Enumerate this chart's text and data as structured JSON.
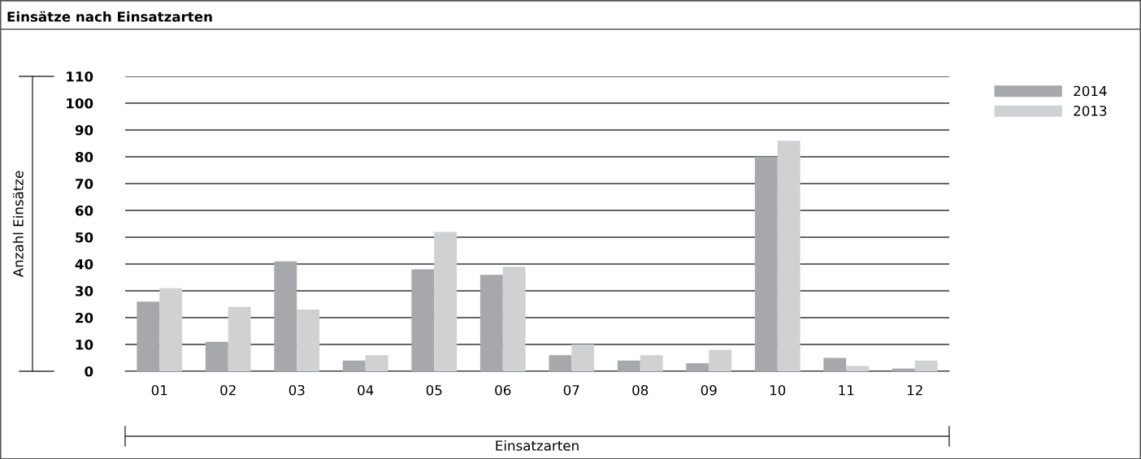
{
  "chart_data": {
    "type": "bar",
    "title": "Einsätze nach Einsatzarten",
    "xlabel": "Einsatzarten",
    "ylabel": "Anzahl Einsätze",
    "categories": [
      "01",
      "02",
      "03",
      "04",
      "05",
      "06",
      "07",
      "08",
      "09",
      "10",
      "11",
      "12"
    ],
    "series": [
      {
        "name": "2014",
        "color": "#a7a8ab",
        "values": [
          26,
          11,
          41,
          4,
          38,
          36,
          6,
          4,
          3,
          80,
          5,
          1
        ]
      },
      {
        "name": "2013",
        "color": "#d0d1d3",
        "values": [
          31,
          24,
          23,
          6,
          52,
          39,
          10,
          6,
          8,
          86,
          2,
          4
        ]
      }
    ],
    "ylim": [
      0,
      110
    ],
    "yticks": [
      0,
      10,
      20,
      30,
      40,
      50,
      60,
      70,
      80,
      90,
      100,
      110
    ],
    "grid": "y",
    "legend": "top right"
  }
}
